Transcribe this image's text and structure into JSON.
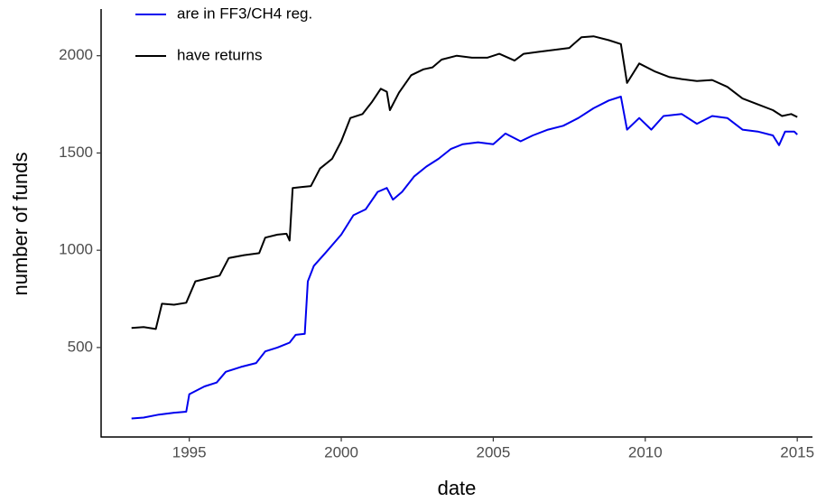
{
  "chart_data": {
    "type": "line",
    "x_label": "date",
    "y_label": "number of funds",
    "xlim": [
      1992.1,
      2015.5
    ],
    "xticks": [
      1995,
      2000,
      2005,
      2010,
      2015
    ],
    "ylim": [
      40,
      2240
    ],
    "yticks": [
      500,
      1000,
      1500,
      2000
    ],
    "grid": false,
    "legend": "top-left",
    "series": [
      {
        "name": "are in FF3/CH4 reg.",
        "color": "#0000ee",
        "x": [
          1993.1,
          1993.5,
          1994.0,
          1994.5,
          1994.9,
          1995.0,
          1995.5,
          1995.9,
          1996.2,
          1996.7,
          1997.2,
          1997.5,
          1997.9,
          1998.3,
          1998.5,
          1998.8,
          1998.9,
          1999.1,
          1999.5,
          2000.0,
          2000.4,
          2000.8,
          2001.2,
          2001.5,
          2001.7,
          2002.0,
          2002.4,
          2002.8,
          2003.2,
          2003.6,
          2004.0,
          2004.5,
          2005.0,
          2005.4,
          2005.9,
          2006.3,
          2006.8,
          2007.3,
          2007.8,
          2008.3,
          2008.8,
          2009.2,
          2009.4,
          2009.8,
          2010.2,
          2010.6,
          2011.2,
          2011.7,
          2012.2,
          2012.7,
          2013.2,
          2013.7,
          2014.2,
          2014.4,
          2014.6,
          2014.9,
          2015.0
        ],
        "values": [
          135,
          140,
          155,
          165,
          170,
          260,
          300,
          320,
          375,
          400,
          420,
          480,
          500,
          525,
          565,
          570,
          840,
          920,
          990,
          1080,
          1180,
          1210,
          1300,
          1320,
          1260,
          1300,
          1380,
          1430,
          1470,
          1520,
          1545,
          1555,
          1545,
          1600,
          1560,
          1590,
          1620,
          1640,
          1680,
          1730,
          1770,
          1790,
          1620,
          1680,
          1620,
          1690,
          1700,
          1650,
          1690,
          1680,
          1620,
          1610,
          1590,
          1540,
          1610,
          1610,
          1595
        ]
      },
      {
        "name": "have returns",
        "color": "#000000",
        "x": [
          1993.1,
          1993.5,
          1993.9,
          1994.1,
          1994.5,
          1994.9,
          1995.2,
          1995.6,
          1996.0,
          1996.3,
          1996.8,
          1997.3,
          1997.5,
          1997.9,
          1998.2,
          1998.3,
          1998.4,
          1998.7,
          1999.0,
          1999.3,
          1999.7,
          2000.0,
          2000.3,
          2000.7,
          2001.0,
          2001.3,
          2001.5,
          2001.6,
          2001.9,
          2002.3,
          2002.7,
          2003.0,
          2003.3,
          2003.8,
          2004.3,
          2004.8,
          2005.2,
          2005.7,
          2006.0,
          2006.5,
          2007.0,
          2007.5,
          2007.9,
          2008.3,
          2008.8,
          2009.2,
          2009.4,
          2009.8,
          2010.3,
          2010.8,
          2011.2,
          2011.7,
          2012.2,
          2012.7,
          2013.2,
          2013.7,
          2014.2,
          2014.5,
          2014.8,
          2015.0
        ],
        "values": [
          600,
          605,
          595,
          725,
          720,
          730,
          840,
          855,
          870,
          960,
          975,
          985,
          1065,
          1080,
          1085,
          1050,
          1320,
          1325,
          1330,
          1420,
          1470,
          1560,
          1680,
          1700,
          1760,
          1830,
          1815,
          1720,
          1810,
          1900,
          1930,
          1940,
          1980,
          2000,
          1990,
          1990,
          2010,
          1975,
          2010,
          2020,
          2030,
          2040,
          2095,
          2100,
          2080,
          2060,
          1860,
          1960,
          1920,
          1890,
          1880,
          1870,
          1875,
          1840,
          1780,
          1750,
          1720,
          1690,
          1700,
          1685
        ]
      }
    ]
  }
}
